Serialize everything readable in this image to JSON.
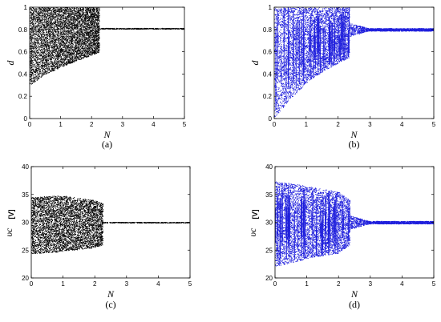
{
  "chart_data": [
    {
      "type": "scatter",
      "panel": "a",
      "caption": "(a)",
      "xlabel": "N",
      "ylabel": "d",
      "xlim": [
        0,
        5
      ],
      "ylim": [
        0,
        1
      ],
      "xticks": [
        "0",
        "1",
        "2",
        "3",
        "4",
        "5"
      ],
      "yticks": [
        "0",
        "0.2",
        "0.4",
        "0.6",
        "0.8",
        "1"
      ],
      "color": "#000000",
      "bifurcation_point": 2.25,
      "chaotic_band_min": [
        [
          0.0,
          0.3
        ],
        [
          0.5,
          0.4
        ],
        [
          1.0,
          0.46
        ],
        [
          1.5,
          0.52
        ],
        [
          2.0,
          0.57
        ],
        [
          2.25,
          0.6
        ]
      ],
      "chaotic_band_max": [
        [
          0.0,
          1.0
        ],
        [
          2.25,
          1.0
        ]
      ],
      "steady_state": 0.81,
      "grid": false
    },
    {
      "type": "scatter",
      "panel": "b",
      "caption": "(b)",
      "xlabel": "N",
      "ylabel": "d",
      "xlim": [
        0,
        5
      ],
      "ylim": [
        0,
        1
      ],
      "xticks": [
        "0",
        "1",
        "2",
        "3",
        "4",
        "5"
      ],
      "yticks": [
        "0",
        "0.2",
        "0.4",
        "0.6",
        "0.8",
        "1"
      ],
      "color": "#1f1fdc",
      "bifurcation_point": 2.35,
      "chaotic_band_min": [
        [
          0.0,
          0.0
        ],
        [
          0.5,
          0.18
        ],
        [
          1.0,
          0.32
        ],
        [
          1.5,
          0.42
        ],
        [
          2.0,
          0.5
        ],
        [
          2.35,
          0.55
        ]
      ],
      "chaotic_band_max": [
        [
          0.0,
          1.0
        ],
        [
          2.35,
          1.0
        ]
      ],
      "steady_state": 0.8,
      "grid": false
    },
    {
      "type": "scatter",
      "panel": "c",
      "caption": "(c)",
      "xlabel": "N",
      "ylabel": "υc",
      "ylabel_unit": "[V]",
      "xlim": [
        0,
        5
      ],
      "ylim": [
        20,
        40
      ],
      "xticks": [
        "0",
        "1",
        "2",
        "3",
        "4",
        "5"
      ],
      "yticks": [
        "20",
        "25",
        "30",
        "35",
        "40"
      ],
      "color": "#000000",
      "bifurcation_point": 2.25,
      "chaotic_band_min": [
        [
          0.0,
          24.3
        ],
        [
          1.0,
          24.8
        ],
        [
          2.0,
          25.5
        ],
        [
          2.25,
          26.0
        ]
      ],
      "chaotic_band_max": [
        [
          0.0,
          34.6
        ],
        [
          1.0,
          34.8
        ],
        [
          2.0,
          34.0
        ],
        [
          2.25,
          33.4
        ]
      ],
      "steady_state": 30.0,
      "grid": false
    },
    {
      "type": "scatter",
      "panel": "d",
      "caption": "(d)",
      "xlabel": "N",
      "ylabel": "υc",
      "ylabel_unit": "[V]",
      "xlim": [
        0,
        5
      ],
      "ylim": [
        20,
        40
      ],
      "xticks": [
        "0",
        "1",
        "2",
        "3",
        "4",
        "5"
      ],
      "yticks": [
        "20",
        "25",
        "30",
        "35",
        "40"
      ],
      "color": "#1f1fdc",
      "bifurcation_point": 2.35,
      "chaotic_band_min": [
        [
          0.0,
          22.0
        ],
        [
          1.0,
          23.5
        ],
        [
          2.0,
          24.5
        ],
        [
          2.35,
          26.0
        ]
      ],
      "chaotic_band_max": [
        [
          0.0,
          37.5
        ],
        [
          1.0,
          36.5
        ],
        [
          2.0,
          35.5
        ],
        [
          2.35,
          34.0
        ]
      ],
      "steady_state": 30.0,
      "grid": false
    }
  ]
}
